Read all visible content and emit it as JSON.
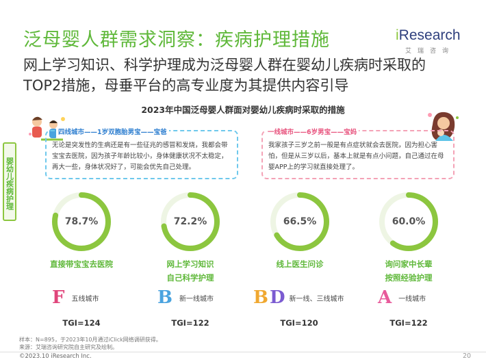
{
  "title": "泛母婴人群需求洞察：疾病护理措施",
  "logo": {
    "main_i": "i",
    "main_rest": "Research",
    "sub": "艾瑞咨询"
  },
  "subtitle": "网上学习知识、科学护理成为泛母婴人群在婴幼儿疾病时采取的TOP2措施，母垂平台的高专业度为其提供内容引导",
  "chart_title": "2023年中国泛母婴人群面对婴幼儿疾病时采取的措施",
  "side_label": "婴幼儿疾病护理",
  "quotes": [
    {
      "label": "四线城市——1岁双胞胎男宝——宝爸",
      "text": "无论是突发性的生病还是有一些征兆的感冒和发烧，我都会带宝宝去医院，因为孩子年龄比较小，身体健康状况不太稳定，再大一些，身体状况好了，可能会优先自己处理。"
    },
    {
      "label": "一线城市——6岁男宝——宝妈",
      "text": "我家孩子三岁之前一般是有点症状就会去医院，因为担心害怕，但是从三岁以后，基本上就是有点小问题，自己通过在母婴APP上的学习就直接处理了。"
    }
  ],
  "measures": [
    {
      "value": 78.7,
      "pct_label": "78.7%",
      "label_line1": "直接带宝宝去医院",
      "label_line2": "",
      "city_glyph": "F",
      "city_glyph2": "",
      "city_text": "五线城市",
      "tgi": "TGI=124"
    },
    {
      "value": 72.2,
      "pct_label": "72.2%",
      "label_line1": "网上学习知识",
      "label_line2": "自己科学护理",
      "city_glyph": "B",
      "city_glyph2": "",
      "city_text": "新一线城市",
      "tgi": "TGI=122"
    },
    {
      "value": 66.5,
      "pct_label": "66.5%",
      "label_line1": "线上医生问诊",
      "label_line2": "",
      "city_glyph": "B",
      "city_glyph2": "D",
      "city_text": "新一线、三线城市",
      "tgi": "TGI=120"
    },
    {
      "value": 60.0,
      "pct_label": "60.0%",
      "label_line1": "询问家中长辈",
      "label_line2": "按照经验护理",
      "city_glyph": "A",
      "city_glyph2": "",
      "city_text": "一线城市",
      "tgi": "TGI=122"
    }
  ],
  "notes": {
    "sample": "样本：N=895，于2023年10月通过iClick网络调研获得。",
    "source": "来源：艾瑞咨询研究院自主研究及绘制。"
  },
  "copyright": "©2023.10 iResearch Inc.",
  "page_number": "20",
  "colors": {
    "accent": "#5fb83a",
    "ring": "#8cc63f",
    "ring_track": "#e8f2dc"
  }
}
